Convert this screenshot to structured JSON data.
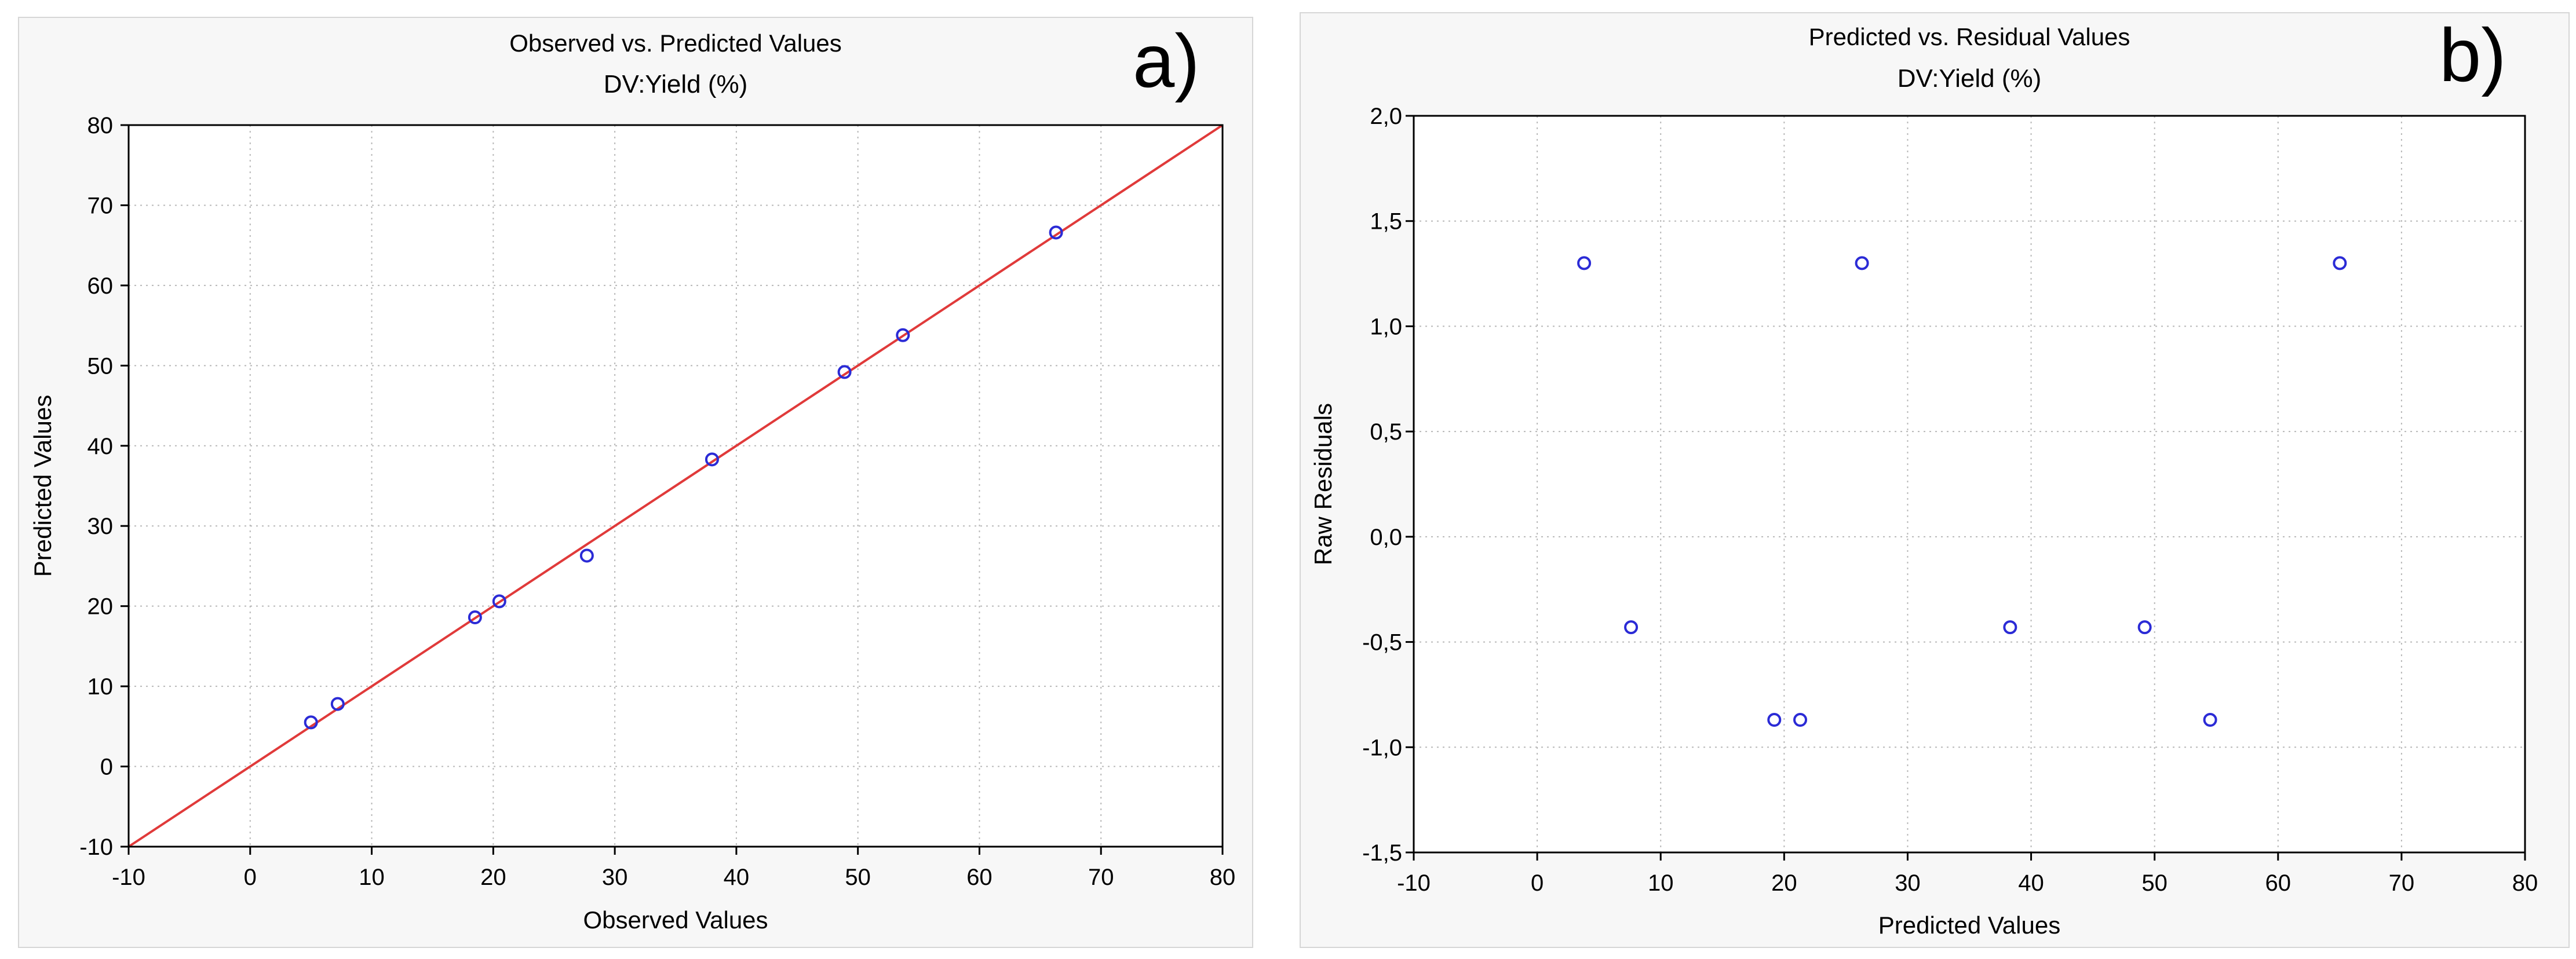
{
  "chart_data": [
    {
      "id": "a",
      "type": "scatter",
      "panel_label": "a)",
      "title": "Observed vs. Predicted Values",
      "subtitle": "DV:Yield (%)",
      "xlabel": "Observed Values",
      "ylabel": "Predicted Values",
      "xlim": [
        -10,
        80
      ],
      "ylim": [
        -10,
        80
      ],
      "xticks": [
        -10,
        0,
        10,
        20,
        30,
        40,
        50,
        60,
        70,
        80
      ],
      "yticks": [
        -10,
        0,
        10,
        20,
        30,
        40,
        50,
        60,
        70,
        80
      ],
      "xtick_labels": [
        "-10",
        "0",
        "10",
        "20",
        "30",
        "40",
        "50",
        "60",
        "70",
        "80"
      ],
      "ytick_labels": [
        "-10",
        "0",
        "10",
        "20",
        "30",
        "40",
        "50",
        "60",
        "70",
        "80"
      ],
      "grid": true,
      "reference_line": {
        "from": [
          -10,
          -10
        ],
        "to": [
          80,
          80
        ],
        "color": "#e03a3a"
      },
      "marker_color": "#2b2bd6",
      "points": [
        {
          "x": 5.0,
          "y": 5.5
        },
        {
          "x": 7.2,
          "y": 7.8
        },
        {
          "x": 18.5,
          "y": 18.6
        },
        {
          "x": 20.5,
          "y": 20.6
        },
        {
          "x": 27.7,
          "y": 26.3
        },
        {
          "x": 38.0,
          "y": 38.3
        },
        {
          "x": 48.9,
          "y": 49.2
        },
        {
          "x": 53.7,
          "y": 53.8
        },
        {
          "x": 66.3,
          "y": 66.6
        }
      ]
    },
    {
      "id": "b",
      "type": "scatter",
      "panel_label": "b)",
      "title": "Predicted vs. Residual Values",
      "subtitle": "DV:Yield (%)",
      "xlabel": "Predicted Values",
      "ylabel": "Raw Residuals",
      "xlim": [
        -10,
        80
      ],
      "ylim": [
        -1.5,
        2.0
      ],
      "xticks": [
        -10,
        0,
        10,
        20,
        30,
        40,
        50,
        60,
        70,
        80
      ],
      "yticks": [
        -1.5,
        -1.0,
        -0.5,
        0.0,
        0.5,
        1.0,
        1.5,
        2.0
      ],
      "xtick_labels": [
        "-10",
        "0",
        "10",
        "20",
        "30",
        "40",
        "50",
        "60",
        "70",
        "80"
      ],
      "ytick_labels": [
        "-1,5",
        "-1,0",
        "-0,5",
        "0,0",
        "0,5",
        "1,0",
        "1,5",
        "2,0"
      ],
      "grid": true,
      "marker_color": "#2b2bd6",
      "points": [
        {
          "x": 3.8,
          "y": 1.3
        },
        {
          "x": 7.6,
          "y": -0.43
        },
        {
          "x": 19.2,
          "y": -0.87
        },
        {
          "x": 21.3,
          "y": -0.87
        },
        {
          "x": 26.3,
          "y": 1.3
        },
        {
          "x": 38.3,
          "y": -0.43
        },
        {
          "x": 49.2,
          "y": -0.43
        },
        {
          "x": 54.5,
          "y": -0.87
        },
        {
          "x": 65.0,
          "y": 1.3
        }
      ]
    }
  ]
}
